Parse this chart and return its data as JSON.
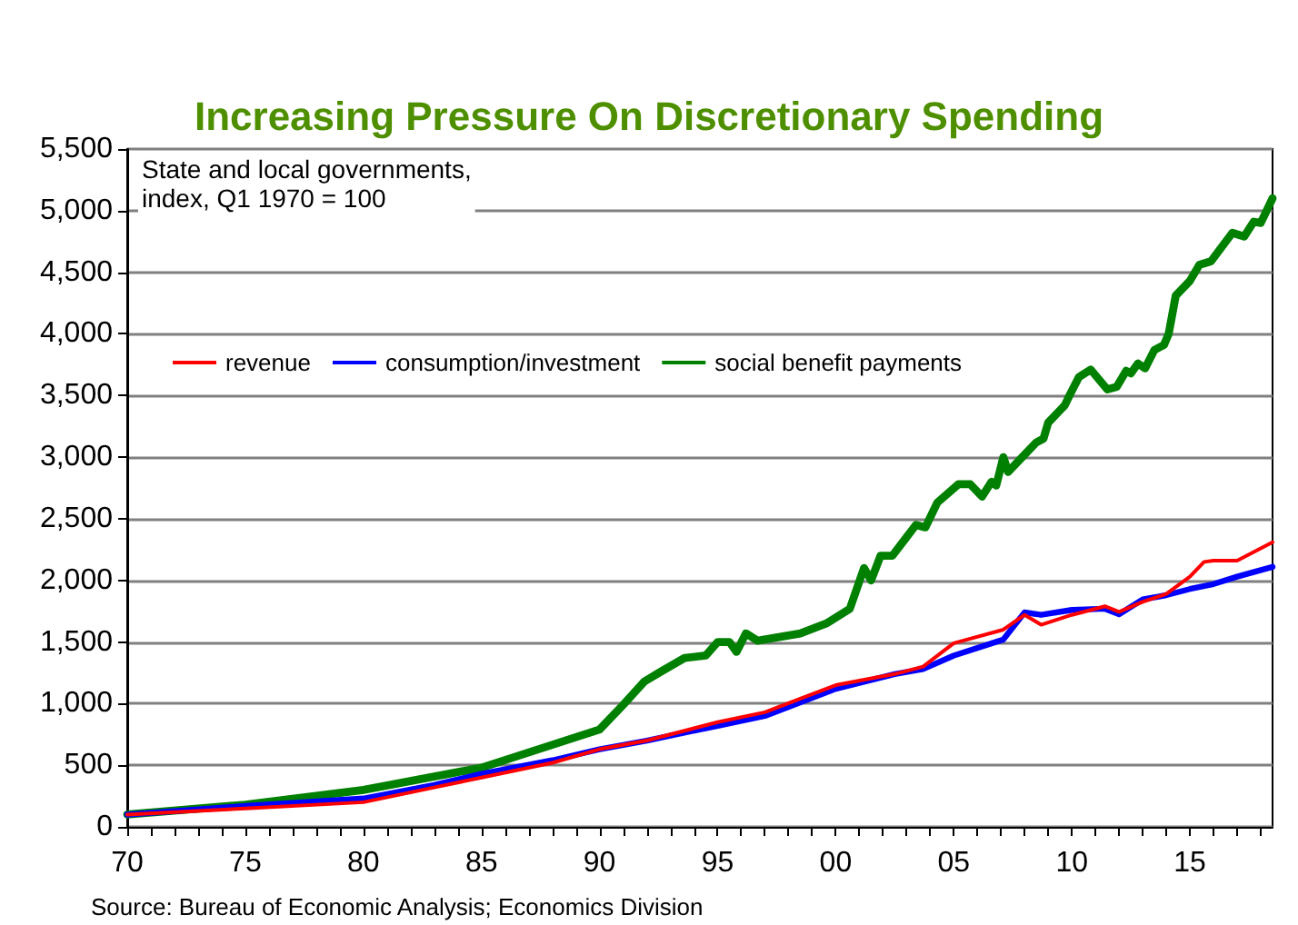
{
  "chart_data": {
    "type": "line",
    "title": "Increasing Pressure On Discretionary Spending",
    "annotations": [
      "State and local governments,\nindex, Q1 1970 = 100",
      "Source: Bureau of Economic Analysis; Economics Division"
    ],
    "xlim": [
      1970,
      2018.5
    ],
    "xticks": [
      {
        "value": 1970,
        "label": "70"
      },
      {
        "value": 1971,
        "label": null
      },
      {
        "value": 1972,
        "label": null
      },
      {
        "value": 1973,
        "label": null
      },
      {
        "value": 1974,
        "label": null
      },
      {
        "value": 1975,
        "label": "75"
      },
      {
        "value": 1976,
        "label": null
      },
      {
        "value": 1977,
        "label": null
      },
      {
        "value": 1978,
        "label": null
      },
      {
        "value": 1979,
        "label": null
      },
      {
        "value": 1980,
        "label": "80"
      },
      {
        "value": 1981,
        "label": null
      },
      {
        "value": 1982,
        "label": null
      },
      {
        "value": 1983,
        "label": null
      },
      {
        "value": 1984,
        "label": null
      },
      {
        "value": 1985,
        "label": "85"
      },
      {
        "value": 1986,
        "label": null
      },
      {
        "value": 1987,
        "label": null
      },
      {
        "value": 1988,
        "label": null
      },
      {
        "value": 1989,
        "label": null
      },
      {
        "value": 1990,
        "label": "90"
      },
      {
        "value": 1991,
        "label": null
      },
      {
        "value": 1992,
        "label": null
      },
      {
        "value": 1993,
        "label": null
      },
      {
        "value": 1994,
        "label": null
      },
      {
        "value": 1995,
        "label": "95"
      },
      {
        "value": 1996,
        "label": null
      },
      {
        "value": 1997,
        "label": null
      },
      {
        "value": 1998,
        "label": null
      },
      {
        "value": 1999,
        "label": null
      },
      {
        "value": 2000,
        "label": "00"
      },
      {
        "value": 2001,
        "label": null
      },
      {
        "value": 2002,
        "label": null
      },
      {
        "value": 2003,
        "label": null
      },
      {
        "value": 2004,
        "label": null
      },
      {
        "value": 2005,
        "label": "05"
      },
      {
        "value": 2006,
        "label": null
      },
      {
        "value": 2007,
        "label": null
      },
      {
        "value": 2008,
        "label": null
      },
      {
        "value": 2009,
        "label": null
      },
      {
        "value": 2010,
        "label": "10"
      },
      {
        "value": 2011,
        "label": null
      },
      {
        "value": 2012,
        "label": null
      },
      {
        "value": 2013,
        "label": null
      },
      {
        "value": 2014,
        "label": null
      },
      {
        "value": 2015,
        "label": "15"
      },
      {
        "value": 2016,
        "label": null
      },
      {
        "value": 2017,
        "label": null
      },
      {
        "value": 2018,
        "label": null
      }
    ],
    "ylim": [
      0,
      5500
    ],
    "yticks": [
      {
        "value": 0,
        "label": "0"
      },
      {
        "value": 500,
        "label": "500"
      },
      {
        "value": 1000,
        "label": "1,000"
      },
      {
        "value": 1500,
        "label": "1,500"
      },
      {
        "value": 2000,
        "label": "2,000"
      },
      {
        "value": 2500,
        "label": "2,500"
      },
      {
        "value": 3000,
        "label": "3,000"
      },
      {
        "value": 3500,
        "label": "3,500"
      },
      {
        "value": 4000,
        "label": "4,000"
      },
      {
        "value": 4500,
        "label": "4,500"
      },
      {
        "value": 5000,
        "label": "5,000"
      },
      {
        "value": 5500,
        "label": "5,500"
      }
    ],
    "grid": "y",
    "legend": "left",
    "marker": "none",
    "line_style": "solid",
    "series": [
      {
        "name": "revenue",
        "color": "#ff0000",
        "x": [
          1970,
          1975,
          1980,
          1983,
          1985,
          1988,
          1990,
          1992,
          1995,
          1997,
          2000,
          2002.5,
          2003.7,
          2005,
          2007.1,
          2008,
          2008.7,
          2010,
          2011.4,
          2012,
          2013,
          2014,
          2015,
          2015.6,
          2016,
          2017,
          2018.5
        ],
        "values": [
          100,
          150,
          200,
          320,
          400,
          520,
          630,
          700,
          850,
          930,
          1150,
          1240,
          1300,
          1490,
          1600,
          1720,
          1640,
          1720,
          1790,
          1745,
          1825,
          1890,
          2030,
          2150,
          2160,
          2160,
          2310
        ]
      },
      {
        "name": "consumption/investment",
        "color": "#0000ff",
        "x": [
          1970,
          1975,
          1980,
          1983,
          1985,
          1988,
          1990,
          1992,
          1995,
          1997,
          2000,
          2002.5,
          2003.7,
          2005,
          2007.1,
          2008,
          2008.7,
          2010,
          2011.4,
          2012,
          2013,
          2014,
          2015,
          2016,
          2017,
          2018.5
        ],
        "values": [
          100,
          170,
          230,
          340,
          430,
          540,
          630,
          700,
          820,
          900,
          1120,
          1240,
          1280,
          1390,
          1520,
          1740,
          1720,
          1760,
          1770,
          1725,
          1845,
          1880,
          1930,
          1970,
          2030,
          2110
        ]
      },
      {
        "name": "social benefit payments",
        "color": "#008000",
        "x": [
          1970,
          1975,
          1980,
          1985,
          1990,
          1991,
          1991.9,
          1992.6,
          1993.6,
          1994.5,
          1995,
          1995.5,
          1995.8,
          1996.2,
          1996.7,
          1998.5,
          1999.6,
          2000.6,
          2001.2,
          2001.5,
          2001.9,
          2002.4,
          2003,
          2003.4,
          2003.8,
          2004.3,
          2005.2,
          2005.7,
          2006.2,
          2006.6,
          2006.8,
          2007.1,
          2007.3,
          2008,
          2008.5,
          2008.8,
          2009,
          2009.5,
          2009.7,
          2009.9,
          2010.3,
          2010.8,
          2011.5,
          2011.9,
          2012.3,
          2012.5,
          2012.8,
          2013.1,
          2013.5,
          2013.9,
          2014.1,
          2014.4,
          2015,
          2015.4,
          2015.9,
          2016.8,
          2017.3,
          2017.7,
          2018,
          2018.5
        ],
        "values": [
          100,
          180,
          300,
          480,
          790,
          990,
          1180,
          1260,
          1370,
          1390,
          1500,
          1500,
          1420,
          1570,
          1510,
          1570,
          1650,
          1770,
          2100,
          2000,
          2200,
          2200,
          2350,
          2450,
          2430,
          2630,
          2780,
          2780,
          2680,
          2800,
          2770,
          3000,
          2880,
          3020,
          3120,
          3150,
          3280,
          3380,
          3420,
          3500,
          3650,
          3710,
          3550,
          3570,
          3700,
          3680,
          3760,
          3720,
          3870,
          3910,
          4000,
          4310,
          4430,
          4560,
          4590,
          4820,
          4790,
          4910,
          4900,
          5100
        ]
      }
    ]
  }
}
